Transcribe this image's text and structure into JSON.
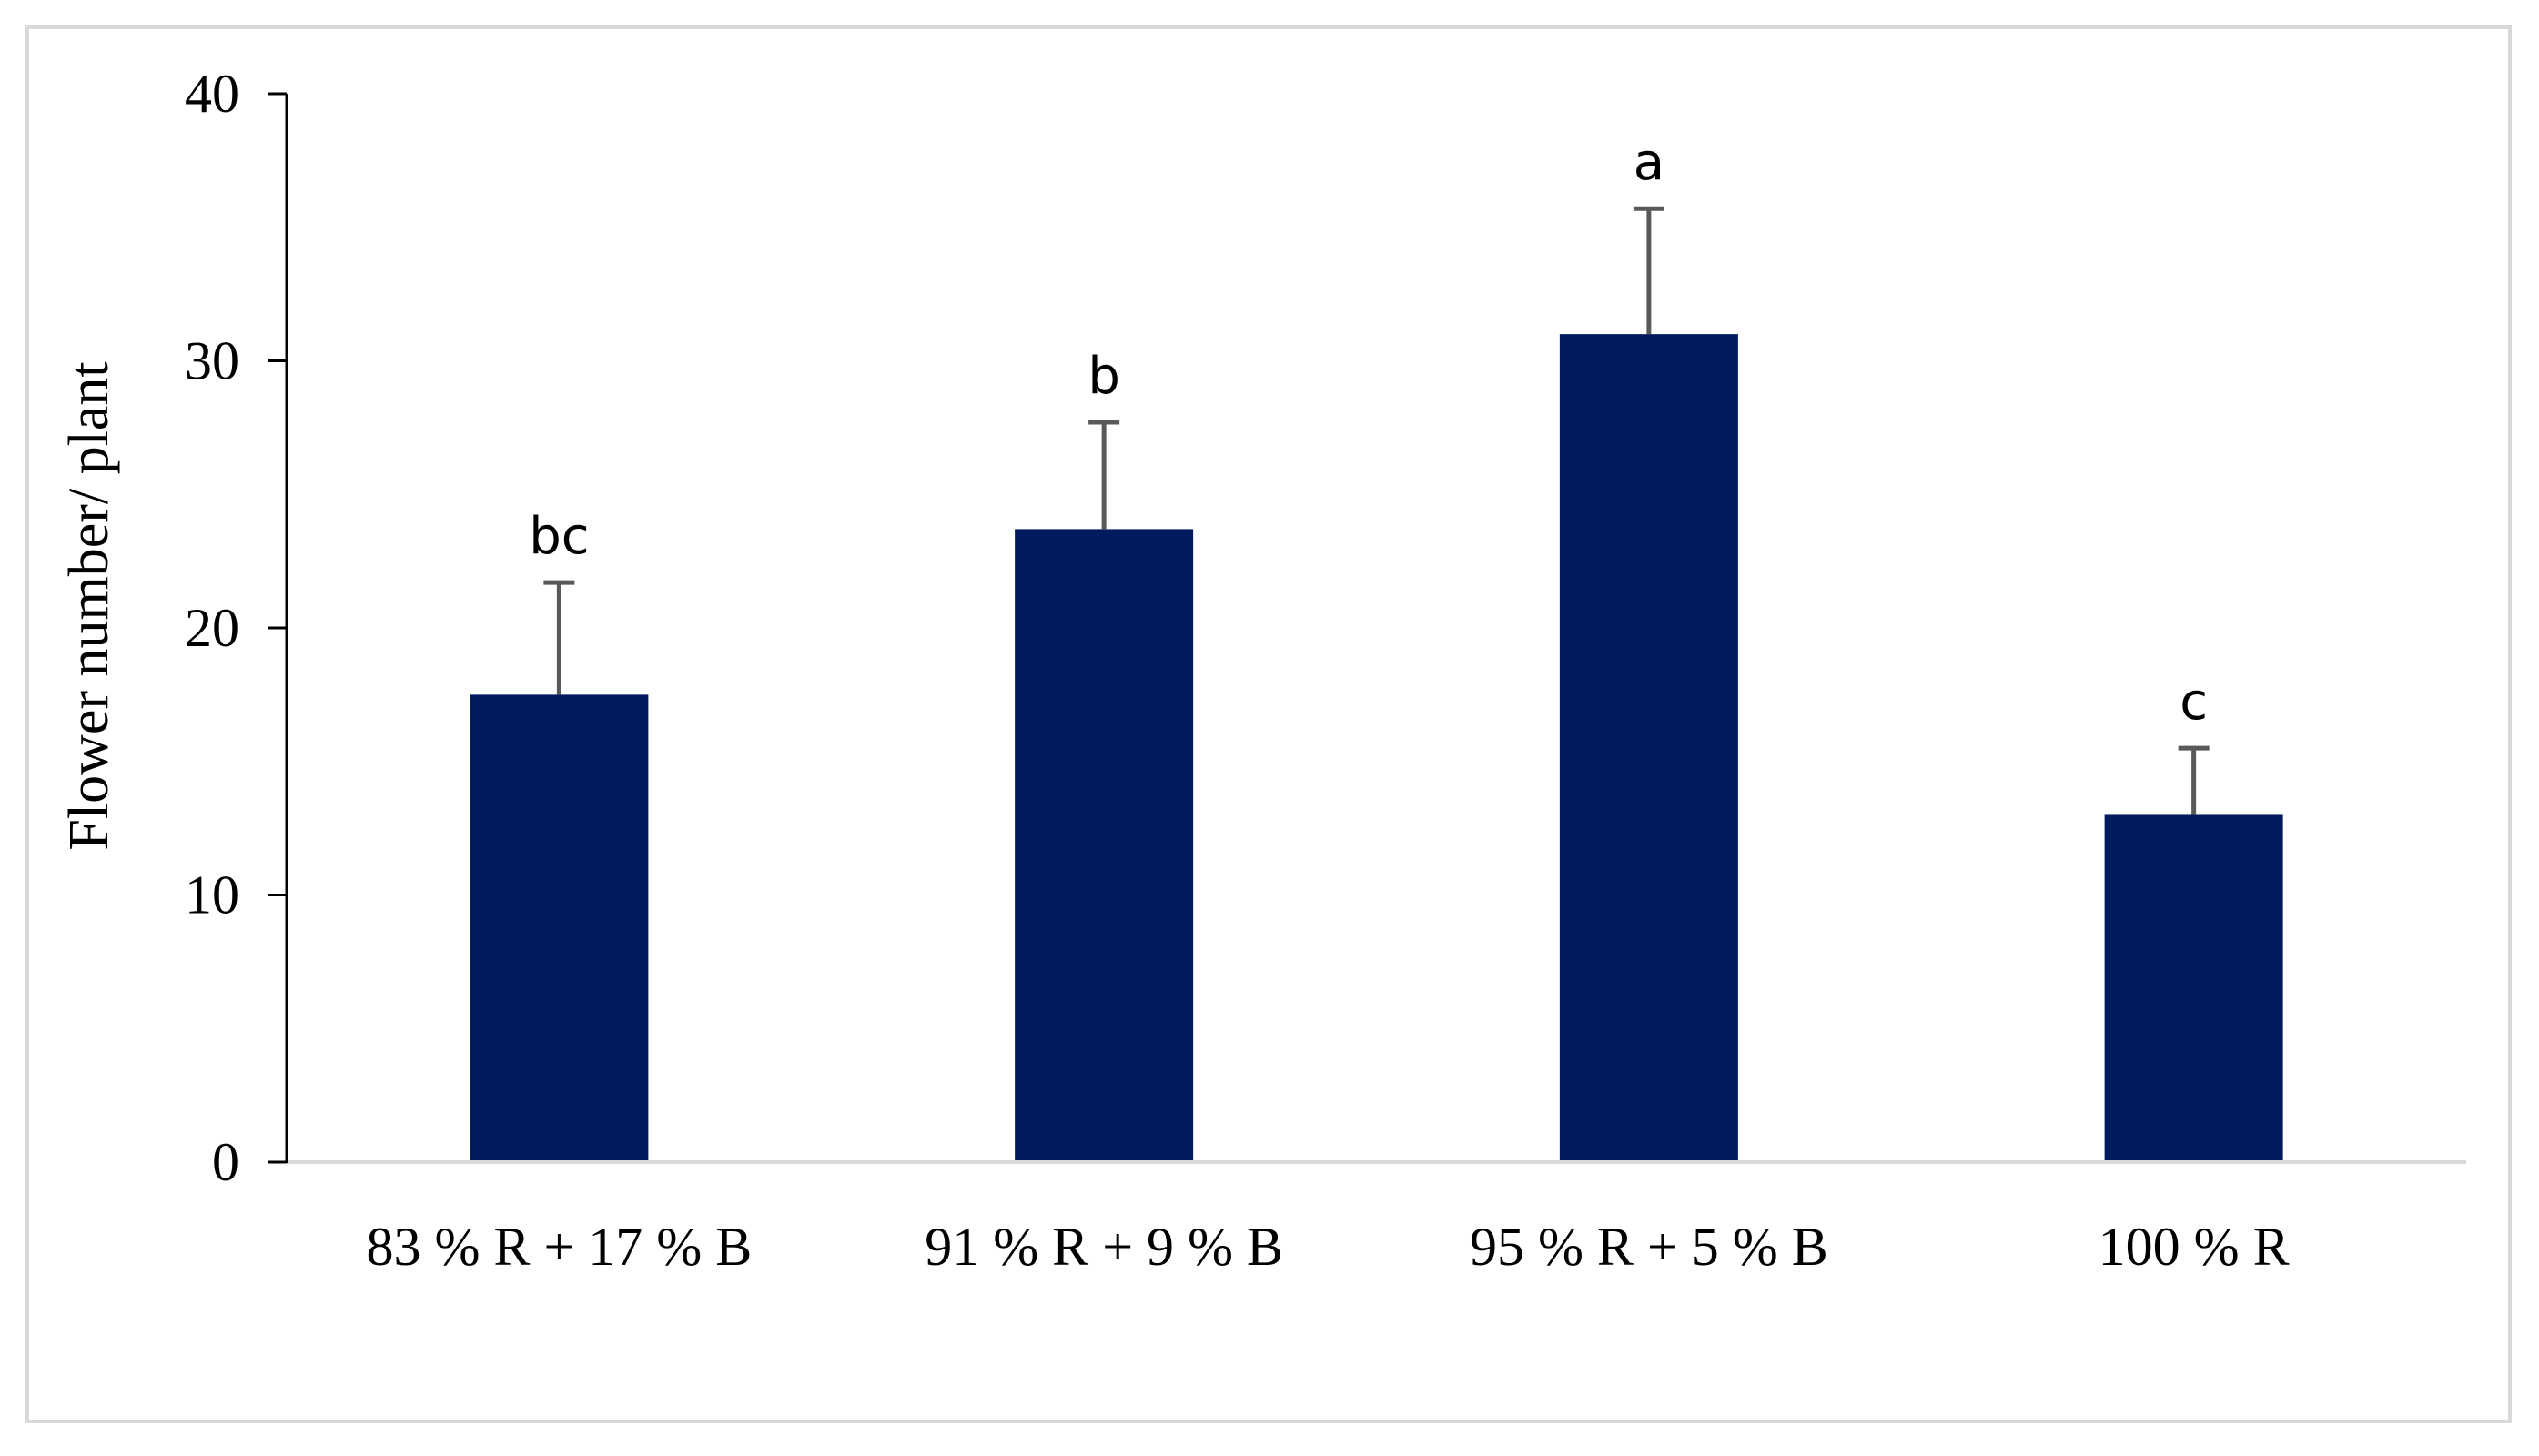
{
  "chart_data": {
    "type": "bar",
    "categories": [
      "83 % R + 17 % B",
      "91 % R + 9 % B",
      "95 % R + 5 % B",
      "100 % R"
    ],
    "values": [
      17.5,
      23.7,
      31.0,
      13.0
    ],
    "error_plus": [
      4.2,
      4.0,
      4.7,
      2.5
    ],
    "significance": [
      "bc",
      "b",
      "a",
      "c"
    ],
    "ylabel": "Flower number/ plant",
    "xlabel": "",
    "ylim": [
      0,
      40
    ],
    "yticks": [
      0,
      10,
      20,
      30,
      40
    ],
    "grid": false,
    "legend": "none",
    "colors": {
      "bar": "#001a5e",
      "error_bar": "#595959",
      "axis": "#000000",
      "baseline": "#d9d9d9"
    }
  }
}
